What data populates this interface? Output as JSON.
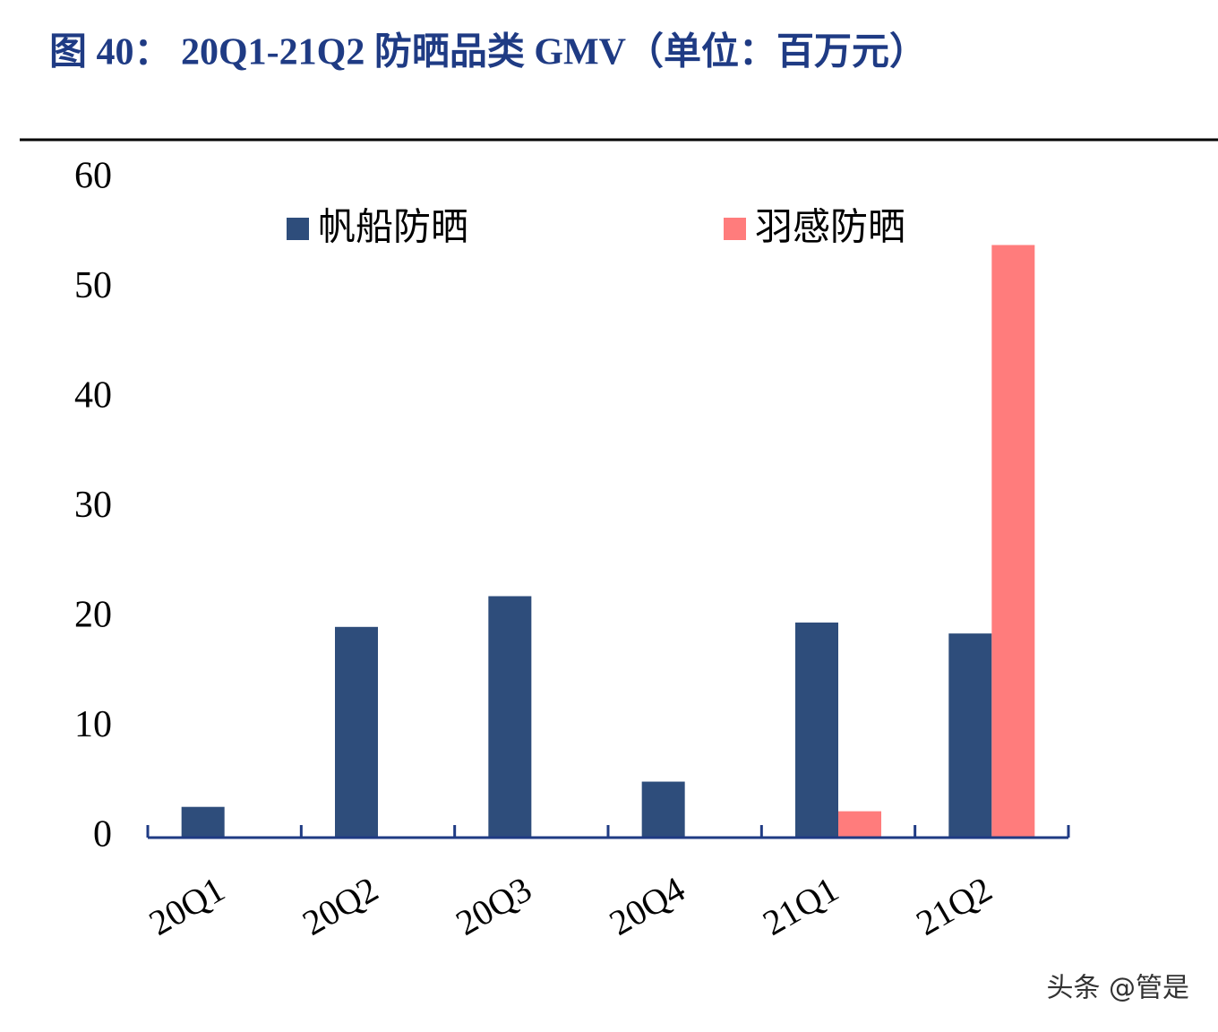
{
  "title": "图 40：  20Q1-21Q2 防晒品类 GMV（单位：百万元）",
  "chart_data": {
    "type": "bar",
    "categories": [
      "20Q1",
      "20Q2",
      "20Q3",
      "20Q4",
      "21Q1",
      "21Q2"
    ],
    "series": [
      {
        "name": "帆船防晒",
        "color": "#2e4d7b",
        "values": [
          2.8,
          19.2,
          22.0,
          5.1,
          19.6,
          18.6
        ]
      },
      {
        "name": "羽感防晒",
        "color": "#ff7c7c",
        "values": [
          0,
          0,
          0,
          0,
          2.4,
          54.0
        ]
      }
    ],
    "ylim": [
      0,
      60
    ],
    "yticks": [
      0,
      10,
      20,
      30,
      40,
      50,
      60
    ],
    "grid": false,
    "legend": "top"
  },
  "watermark": "头条 @管是"
}
